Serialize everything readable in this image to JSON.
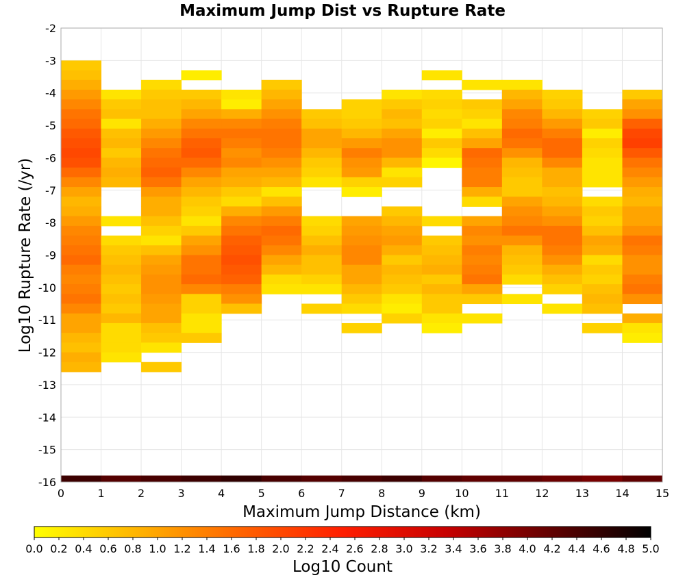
{
  "chart_data": {
    "type": "heatmap",
    "title": "Maximum Jump Dist vs Rupture Rate",
    "xlabel": "Maximum Jump Distance (km)",
    "ylabel": "Log10 Rupture Rate (/yr)",
    "colorbar_label": "Log10 Count",
    "xlim": [
      0,
      15
    ],
    "ylim": [
      -16,
      -2
    ],
    "x_ticks": [
      "0",
      "1",
      "2",
      "3",
      "4",
      "5",
      "6",
      "7",
      "8",
      "9",
      "10",
      "11",
      "12",
      "13",
      "14",
      "15"
    ],
    "y_ticks": [
      "-2",
      "-3",
      "-4",
      "-5",
      "-6",
      "-7",
      "-8",
      "-9",
      "-10",
      "-11",
      "-12",
      "-13",
      "-14",
      "-15",
      "-16"
    ],
    "colorbar_range": [
      0,
      5
    ],
    "colorbar_ticks": [
      "0.0",
      "0.2",
      "0.4",
      "0.6",
      "0.8",
      "1.0",
      "1.2",
      "1.4",
      "1.6",
      "1.8",
      "2.0",
      "2.2",
      "2.4",
      "2.6",
      "2.8",
      "3.0",
      "3.2",
      "3.4",
      "3.6",
      "3.8",
      "4.0",
      "4.2",
      "4.4",
      "4.6",
      "4.8",
      "5.0"
    ],
    "colormap": [
      "#ffff00",
      "#ffb400",
      "#ff6400",
      "#ff1e00",
      "#c80000",
      "#640000",
      "#000000"
    ],
    "grid": true,
    "cell_height": 0.3,
    "bottom_row": {
      "y": -16,
      "values": [
        4.5,
        4.3,
        4.4,
        4.5,
        4.6,
        4.4,
        4.3,
        4.4,
        4.5,
        4.3,
        4.2,
        4.2,
        4.1,
        4.0,
        4.2
      ]
    },
    "columns": [
      {
        "x": 0,
        "y_top": -3.0,
        "values": [
          0.6,
          0.7,
          0.9,
          1.1,
          1.3,
          1.5,
          1.6,
          1.8,
          1.9,
          2.0,
          1.9,
          1.6,
          1.3,
          1.0,
          0.8,
          0.9,
          1.1,
          1.3,
          1.4,
          1.5,
          1.6,
          1.4,
          1.3,
          1.4,
          1.5,
          1.3,
          1.0,
          1.0,
          0.8,
          0.7,
          0.9,
          0.8
        ]
      },
      {
        "x": 1,
        "y_top": -3.9,
        "values": [
          0.3,
          0.6,
          0.7,
          0.3,
          0.7,
          0.8,
          0.6,
          0.8,
          0.9,
          0.8,
          null,
          null,
          null,
          0.3,
          null,
          0.4,
          0.6,
          0.7,
          0.8,
          0.7,
          0.6,
          0.7,
          0.6,
          0.8,
          0.4,
          0.4,
          0.4,
          0.3
        ]
      },
      {
        "x": 2,
        "y_top": -3.6,
        "values": [
          0.4,
          0.6,
          0.7,
          0.7,
          0.9,
          1.1,
          1.3,
          1.5,
          1.6,
          1.7,
          1.5,
          1.1,
          0.9,
          0.9,
          0.7,
          0.5,
          0.3,
          0.7,
          1.0,
          1.1,
          1.2,
          1.2,
          1.1,
          1.0,
          1.0,
          0.7,
          0.6,
          0.3,
          null,
          0.6
        ]
      },
      {
        "x": 3,
        "y_top": -3.3,
        "values": [
          0.2,
          null,
          0.6,
          0.8,
          1.0,
          1.3,
          1.5,
          1.7,
          1.8,
          1.6,
          1.3,
          1.0,
          0.8,
          0.6,
          0.5,
          0.3,
          0.6,
          1.0,
          1.2,
          1.5,
          1.5,
          1.6,
          1.3,
          0.5,
          0.5,
          0.3,
          0.3,
          0.6
        ]
      },
      {
        "x": 4,
        "y_top": -3.9,
        "values": [
          0.3,
          0.2,
          0.9,
          1.3,
          1.5,
          1.4,
          1.2,
          1.3,
          1.0,
          0.9,
          0.6,
          0.4,
          0.9,
          1.3,
          1.5,
          1.7,
          1.8,
          1.9,
          1.8,
          1.7,
          1.4,
          1.2,
          0.7
        ]
      },
      {
        "x": 5,
        "y_top": -3.6,
        "values": [
          0.6,
          0.8,
          1.0,
          1.2,
          1.4,
          1.5,
          1.5,
          1.4,
          1.2,
          1.0,
          0.8,
          0.3,
          0.7,
          1.1,
          1.4,
          1.6,
          1.5,
          1.3,
          1.0,
          0.8,
          0.4,
          0.3
        ]
      },
      {
        "x": 6,
        "y_top": -4.5,
        "values": [
          0.6,
          0.7,
          1.0,
          1.0,
          0.8,
          0.6,
          0.5,
          0.3,
          null,
          null,
          null,
          0.4,
          0.5,
          0.7,
          0.9,
          0.7,
          0.7,
          0.5,
          0.3,
          null,
          0.5
        ]
      },
      {
        "x": 7,
        "y_top": -4.2,
        "values": [
          0.5,
          0.5,
          0.6,
          0.8,
          1.1,
          1.4,
          1.2,
          1.1,
          0.5,
          0.2,
          null,
          null,
          1.0,
          1.1,
          1.2,
          1.3,
          1.3,
          1.0,
          1.0,
          0.8,
          0.6,
          0.4,
          null,
          0.5
        ]
      },
      {
        "x": 8,
        "y_top": -3.9,
        "values": [
          0.3,
          0.6,
          0.8,
          0.7,
          1.0,
          1.2,
          1.2,
          0.8,
          0.3,
          0.5,
          null,
          null,
          0.6,
          0.8,
          1.0,
          1.1,
          0.9,
          0.6,
          0.8,
          0.7,
          0.6,
          0.3,
          0.2,
          0.5
        ]
      },
      {
        "x": 9,
        "y_top": -3.3,
        "values": [
          0.3,
          null,
          0.4,
          0.5,
          0.4,
          0.5,
          0.2,
          0.6,
          0.4,
          0.1,
          null,
          null,
          null,
          null,
          null,
          0.4,
          null,
          0.6,
          0.7,
          0.8,
          0.9,
          0.6,
          0.8,
          0.6,
          0.6,
          0.3,
          0.2
        ]
      },
      {
        "x": 10,
        "y_top": -3.6,
        "values": [
          0.3,
          null,
          0.6,
          0.5,
          0.3,
          0.7,
          1.0,
          1.6,
          1.5,
          1.4,
          1.4,
          0.9,
          0.4,
          null,
          1.0,
          1.3,
          1.2,
          1.4,
          1.3,
          1.4,
          1.5,
          1.0,
          0.6,
          null,
          0.3
        ]
      },
      {
        "x": 11,
        "y_top": -3.6,
        "values": [
          0.3,
          0.8,
          1.0,
          1.3,
          1.4,
          1.6,
          1.5,
          1.2,
          0.8,
          0.7,
          0.6,
          0.6,
          1.0,
          1.2,
          1.3,
          1.5,
          1.2,
          0.8,
          0.7,
          0.6,
          0.4,
          null,
          0.3
        ]
      },
      {
        "x": 12,
        "y_top": -3.9,
        "values": [
          0.5,
          0.6,
          0.8,
          1.1,
          1.4,
          1.6,
          1.6,
          1.3,
          0.9,
          0.9,
          0.7,
          0.8,
          1.0,
          1.2,
          1.5,
          1.5,
          1.4,
          1.2,
          0.9,
          0.7,
          0.5,
          null,
          0.3
        ]
      },
      {
        "x": 13,
        "y_top": -4.5,
        "values": [
          0.5,
          0.6,
          0.2,
          0.5,
          0.4,
          0.3,
          0.3,
          0.3,
          null,
          0.4,
          0.6,
          0.5,
          0.7,
          1.0,
          0.9,
          0.4,
          0.6,
          0.5,
          0.7,
          0.8,
          0.7,
          null,
          0.5
        ]
      },
      {
        "x": 14,
        "y_top": -3.9,
        "values": [
          0.6,
          1.0,
          1.2,
          1.7,
          2.0,
          2.1,
          1.8,
          1.5,
          1.3,
          1.1,
          0.9,
          0.8,
          1.0,
          1.0,
          1.2,
          1.5,
          1.4,
          1.2,
          1.2,
          1.4,
          1.5,
          1.2,
          null,
          0.9,
          0.3,
          0.2
        ]
      }
    ]
  }
}
